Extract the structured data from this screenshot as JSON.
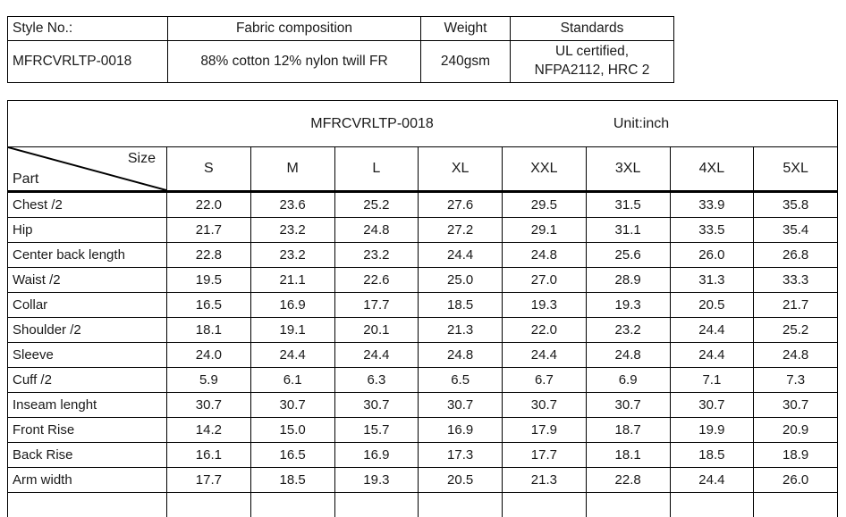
{
  "info_table": {
    "headers": {
      "style_no": "Style No.:",
      "fabric": "Fabric composition",
      "weight": "Weight",
      "standards": "Standards"
    },
    "values": {
      "style_no": "MFRCVRLTP-0018",
      "fabric": "88% cotton 12% nylon twill FR",
      "weight": "240gsm",
      "standards_lines": [
        "UL certified,",
        "NFPA2112, HRC 2"
      ]
    }
  },
  "size_chart": {
    "title": "MFRCVRLTP-0018",
    "unit": "Unit:inch",
    "corner": {
      "top_right": "Size",
      "bottom_left": "Part"
    },
    "columns": [
      "S",
      "M",
      "L",
      "XL",
      "XXL",
      "3XL",
      "4XL",
      "5XL"
    ],
    "rows": [
      {
        "part": "Chest /2",
        "values": [
          "22.0",
          "23.6",
          "25.2",
          "27.6",
          "29.5",
          "31.5",
          "33.9",
          "35.8"
        ]
      },
      {
        "part": "Hip",
        "values": [
          "21.7",
          "23.2",
          "24.8",
          "27.2",
          "29.1",
          "31.1",
          "33.5",
          "35.4"
        ]
      },
      {
        "part": "Center back length",
        "values": [
          "22.8",
          "23.2",
          "23.2",
          "24.4",
          "24.8",
          "25.6",
          "26.0",
          "26.8"
        ]
      },
      {
        "part": "Waist /2",
        "values": [
          "19.5",
          "21.1",
          "22.6",
          "25.0",
          "27.0",
          "28.9",
          "31.3",
          "33.3"
        ]
      },
      {
        "part": "Collar",
        "values": [
          "16.5",
          "16.9",
          "17.7",
          "18.5",
          "19.3",
          "19.3",
          "20.5",
          "21.7"
        ]
      },
      {
        "part": "Shoulder /2",
        "values": [
          "18.1",
          "19.1",
          "20.1",
          "21.3",
          "22.0",
          "23.2",
          "24.4",
          "25.2"
        ]
      },
      {
        "part": "Sleeve",
        "values": [
          "24.0",
          "24.4",
          "24.4",
          "24.8",
          "24.4",
          "24.8",
          "24.4",
          "24.8"
        ]
      },
      {
        "part": "Cuff /2",
        "values": [
          "5.9",
          "6.1",
          "6.3",
          "6.5",
          "6.7",
          "6.9",
          "7.1",
          "7.3"
        ]
      },
      {
        "part": "Inseam lenght",
        "values": [
          "30.7",
          "30.7",
          "30.7",
          "30.7",
          "30.7",
          "30.7",
          "30.7",
          "30.7"
        ]
      },
      {
        "part": "Front Rise",
        "values": [
          "14.2",
          "15.0",
          "15.7",
          "16.9",
          "17.9",
          "18.7",
          "19.9",
          "20.9"
        ]
      },
      {
        "part": "Back Rise",
        "values": [
          "16.1",
          "16.5",
          "16.9",
          "17.3",
          "17.7",
          "18.1",
          "18.5",
          "18.9"
        ]
      },
      {
        "part": "Arm width",
        "values": [
          "17.7",
          "18.5",
          "19.3",
          "20.5",
          "21.3",
          "22.8",
          "24.4",
          "26.0"
        ]
      }
    ]
  },
  "colors": {
    "text": "#1a1a1a",
    "border": "#000000",
    "background": "#ffffff"
  }
}
